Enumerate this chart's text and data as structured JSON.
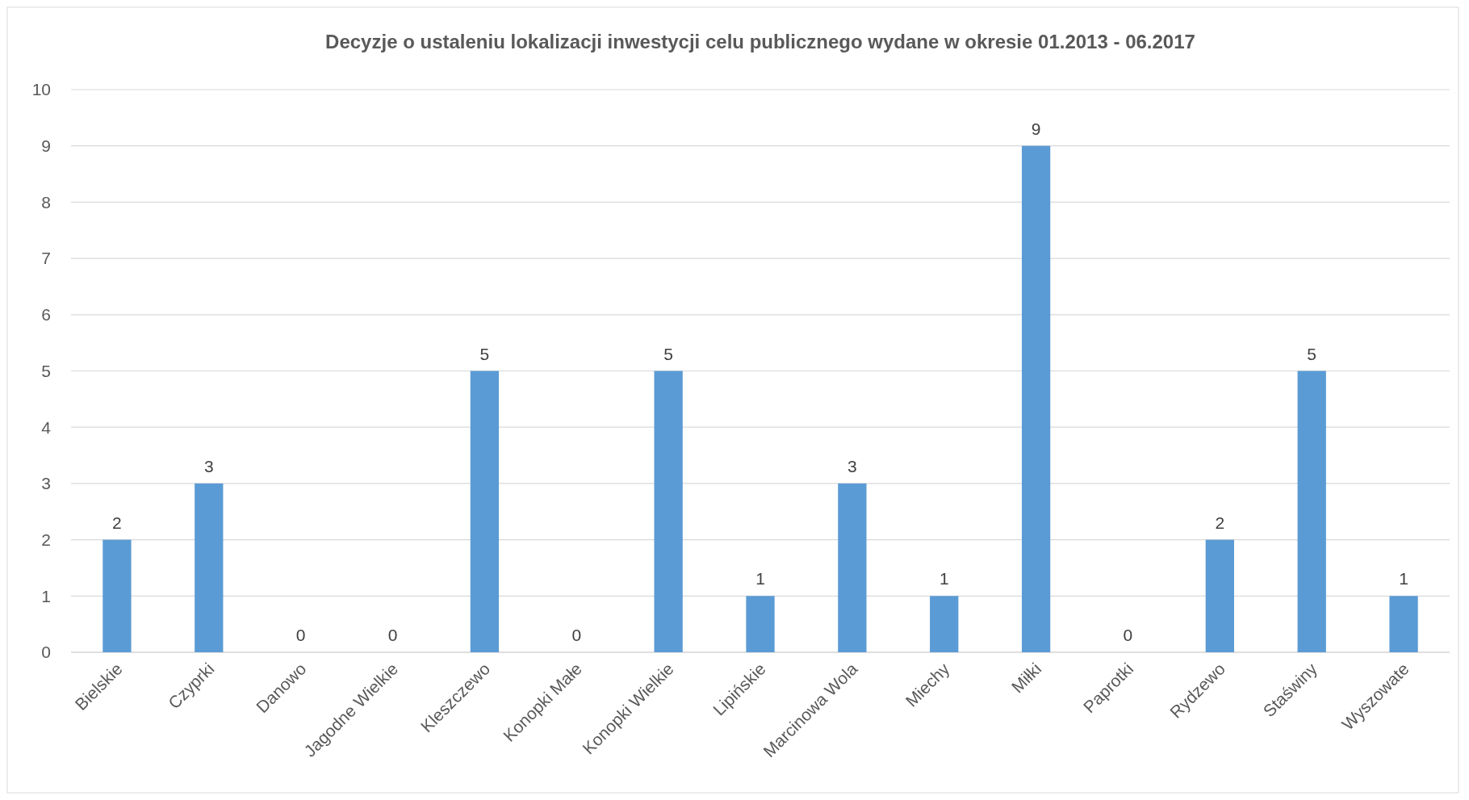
{
  "chart_data": {
    "type": "bar",
    "title": "Decyzje o ustaleniu lokalizacji inwestycji celu publicznego wydane w okresie 01.2013 - 06.2017",
    "categories": [
      "Bielskie",
      "Czyprki",
      "Danowo",
      "Jagodne Wielkie",
      "Kleszczewo",
      "Konopki Małe",
      "Konopki Wielkie",
      "Lipińskie",
      "Marcinowa Wola",
      "Miechy",
      "Miłki",
      "Paprotki",
      "Rydzewo",
      "Staświny",
      "Wyszowate"
    ],
    "values": [
      2,
      3,
      0,
      0,
      5,
      0,
      5,
      1,
      3,
      1,
      9,
      0,
      2,
      5,
      1
    ],
    "color": "#5b9bd5",
    "ylim": [
      0,
      10
    ],
    "yticks": [
      0,
      1,
      2,
      3,
      4,
      5,
      6,
      7,
      8,
      9,
      10
    ],
    "grid": "y",
    "data_labels": true
  }
}
